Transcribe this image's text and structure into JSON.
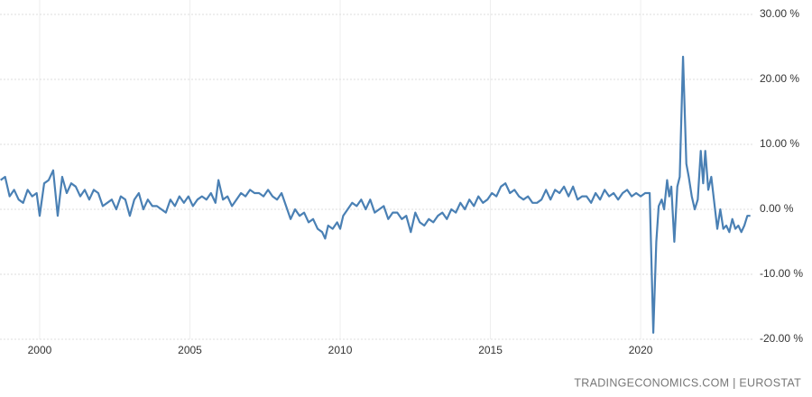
{
  "chart_data": {
    "type": "line",
    "source": "TRADINGECONOMICS.COM | EUROSTAT",
    "color": "#4a80b4",
    "grid": true,
    "xlim": [
      1998.68,
      2023.75
    ],
    "xticks": [
      2000,
      2005,
      2010,
      2015,
      2020
    ],
    "ylim": [
      -20,
      30
    ],
    "yticks": [
      {
        "value": 30,
        "label": "30.00 %"
      },
      {
        "value": 20,
        "label": "20.00 %"
      },
      {
        "value": 10,
        "label": "10.00 %"
      },
      {
        "value": 0,
        "label": "0.00 %"
      },
      {
        "value": -10,
        "label": "-10.00 %"
      },
      {
        "value": -20,
        "label": "-20.00 %"
      }
    ],
    "x": [
      1998.7,
      1998.85,
      1999.0,
      1999.15,
      1999.3,
      1999.45,
      1999.6,
      1999.75,
      1999.9,
      2000.0,
      2000.15,
      2000.3,
      2000.45,
      2000.6,
      2000.75,
      2000.9,
      2001.05,
      2001.2,
      2001.35,
      2001.5,
      2001.65,
      2001.8,
      2001.95,
      2002.1,
      2002.25,
      2002.4,
      2002.55,
      2002.7,
      2002.85,
      2003.0,
      2003.15,
      2003.3,
      2003.45,
      2003.6,
      2003.75,
      2003.9,
      2004.05,
      2004.2,
      2004.35,
      2004.5,
      2004.65,
      2004.8,
      2004.95,
      2005.1,
      2005.25,
      2005.4,
      2005.55,
      2005.7,
      2005.85,
      2005.95,
      2006.1,
      2006.25,
      2006.4,
      2006.55,
      2006.7,
      2006.85,
      2007.0,
      2007.15,
      2007.3,
      2007.45,
      2007.6,
      2007.75,
      2007.9,
      2008.05,
      2008.2,
      2008.35,
      2008.5,
      2008.65,
      2008.8,
      2008.95,
      2009.1,
      2009.25,
      2009.4,
      2009.5,
      2009.6,
      2009.75,
      2009.9,
      2010.0,
      2010.1,
      2010.25,
      2010.4,
      2010.55,
      2010.7,
      2010.85,
      2011.0,
      2011.15,
      2011.3,
      2011.45,
      2011.6,
      2011.75,
      2011.9,
      2012.05,
      2012.2,
      2012.35,
      2012.5,
      2012.65,
      2012.8,
      2012.95,
      2013.1,
      2013.25,
      2013.4,
      2013.55,
      2013.7,
      2013.85,
      2014.0,
      2014.15,
      2014.3,
      2014.45,
      2014.6,
      2014.75,
      2014.9,
      2015.05,
      2015.2,
      2015.35,
      2015.5,
      2015.65,
      2015.8,
      2015.95,
      2016.1,
      2016.25,
      2016.4,
      2016.55,
      2016.7,
      2016.85,
      2017.0,
      2017.15,
      2017.3,
      2017.45,
      2017.6,
      2017.75,
      2017.9,
      2018.05,
      2018.2,
      2018.35,
      2018.5,
      2018.65,
      2018.8,
      2018.95,
      2019.1,
      2019.25,
      2019.4,
      2019.55,
      2019.7,
      2019.85,
      2020.0,
      2020.15,
      2020.3,
      2020.42,
      2020.52,
      2020.6,
      2020.7,
      2020.78,
      2020.88,
      2020.95,
      2021.02,
      2021.12,
      2021.22,
      2021.3,
      2021.41,
      2021.52,
      2021.6,
      2021.7,
      2021.8,
      2021.9,
      2022.0,
      2022.08,
      2022.15,
      2022.25,
      2022.35,
      2022.45,
      2022.55,
      2022.65,
      2022.75,
      2022.85,
      2022.95,
      2023.05,
      2023.15,
      2023.25,
      2023.35,
      2023.45,
      2023.55,
      2023.65
    ],
    "values": [
      4.5,
      5,
      2,
      3,
      1.5,
      1,
      3,
      2,
      2.5,
      -1,
      4,
      4.5,
      6,
      -1,
      5,
      2.5,
      4,
      3.5,
      2,
      3,
      1.5,
      3,
      2.5,
      0.5,
      1,
      1.5,
      0,
      2,
      1.5,
      -1,
      1.5,
      2.5,
      0,
      1.5,
      0.5,
      0.5,
      0,
      -0.5,
      1.5,
      0.5,
      2,
      1,
      2,
      0.5,
      1.5,
      2,
      1.5,
      2.5,
      1,
      4.5,
      1.5,
      2,
      0.5,
      1.5,
      2.5,
      2,
      3,
      2.5,
      2.5,
      2,
      3,
      2,
      1.5,
      2.5,
      0.5,
      -1.5,
      0,
      -1,
      -0.5,
      -2,
      -1.5,
      -3,
      -3.5,
      -4.5,
      -2.5,
      -3,
      -2,
      -3,
      -1,
      0,
      1,
      0.5,
      1.5,
      0,
      1.5,
      -0.5,
      0,
      0.5,
      -1.5,
      -0.5,
      -0.5,
      -1.5,
      -1,
      -3.5,
      -0.5,
      -2,
      -2.5,
      -1.5,
      -2,
      -1,
      -0.5,
      -1.5,
      0,
      -0.5,
      1,
      0,
      1.5,
      0.5,
      2,
      1,
      1.5,
      2.5,
      2,
      3.5,
      4,
      2.5,
      3,
      2,
      1.5,
      2,
      1,
      1,
      1.5,
      3,
      1.5,
      3,
      2.5,
      3.5,
      2,
      3.5,
      1.5,
      2,
      2,
      1,
      2.5,
      1.5,
      3,
      2,
      2.5,
      1.5,
      2.5,
      3,
      2,
      2.5,
      2,
      2.5,
      2.5,
      -19,
      -5,
      0.5,
      1.5,
      0,
      4.5,
      2,
      3.5,
      -5,
      3.5,
      5,
      23.5,
      7,
      5,
      2,
      0,
      1.5,
      9,
      4,
      9,
      3,
      5,
      1,
      -3,
      0,
      -3,
      -2.5,
      -3.5,
      -1.5,
      -3,
      -2.5,
      -3.5,
      -2.5,
      -1,
      -1
    ]
  }
}
